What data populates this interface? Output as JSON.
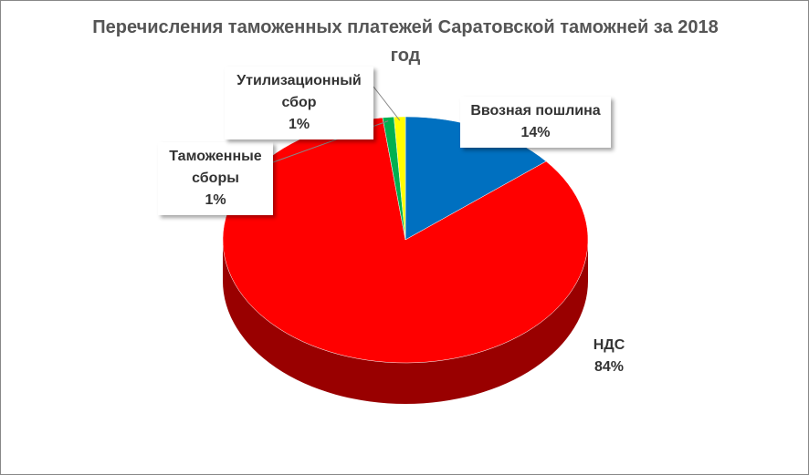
{
  "chart_data": {
    "type": "pie",
    "title": "Перечисления таможенных платежей Саратовской таможней за 2018 год",
    "categories": [
      "Ввозная пошлина",
      "НДС",
      "Таможенные сборы",
      "Утилизационный сбор"
    ],
    "values": [
      14,
      84,
      1,
      1
    ],
    "value_labels": [
      "14%",
      "84%",
      "1%",
      "1%"
    ],
    "colors": [
      "#0070c0",
      "#ff0000",
      "#00b050",
      "#ffff00"
    ]
  }
}
